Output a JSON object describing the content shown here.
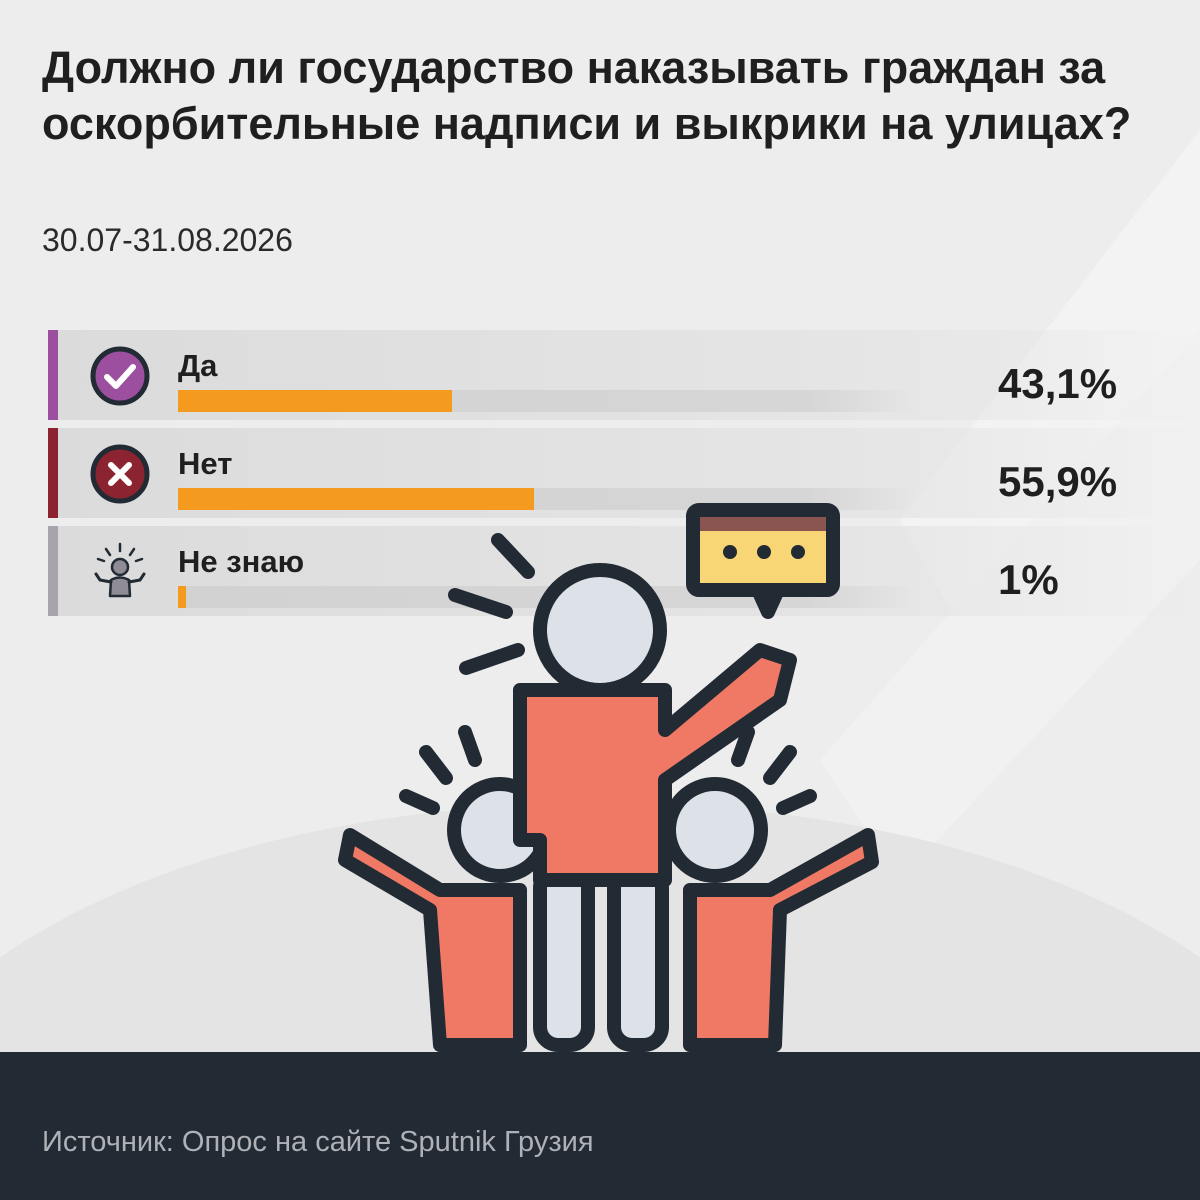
{
  "header": {
    "title": "Должно ли государство наказывать граждан за оскорбительные надписи и выкрики на улицах?",
    "subtitle": "30.07-31.08.2026"
  },
  "chart_data": {
    "type": "bar",
    "orientation": "horizontal",
    "title": "Должно ли государство наказывать граждан за оскорбительные надписи и выкрики на улицах?",
    "categories": [
      "Да",
      "Нет",
      "Не знаю"
    ],
    "values": [
      43.1,
      55.9,
      1
    ],
    "value_labels": [
      "43,1%",
      "55,9%",
      "1%"
    ],
    "xlim": [
      0,
      100
    ],
    "unit": "%",
    "icons": [
      "check-circle-icon",
      "cross-circle-icon",
      "shrug-person-icon"
    ],
    "accent_colors": [
      "#9b4f9e",
      "#8c2330",
      "#a8a4ae"
    ],
    "bar_color": "#f39a1f"
  },
  "illustration": {
    "icon": "crowd-people-speech-bubble-icon"
  },
  "footer": {
    "source": "Источник: Опрос на сайте Sputnik Грузия"
  },
  "colors": {
    "background": "#ededed",
    "footer": "#222a33",
    "accent_bar": "#f39a1f",
    "figure": "#ef7965"
  }
}
